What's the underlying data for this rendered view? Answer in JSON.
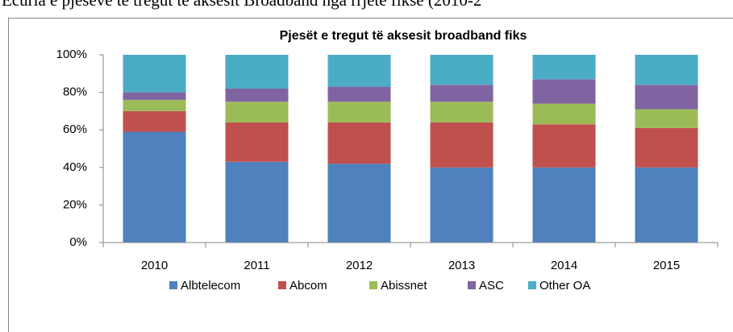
{
  "heading": "Ecuria e pjesëve të tregut të aksesit Broadband nga rrjete fikse (2010-2",
  "chart_data": {
    "type": "stacked_bar",
    "title": "Pjesët e tregut të aksesit broadband fiks",
    "categories": [
      "2010",
      "2011",
      "2012",
      "2013",
      "2014",
      "2015"
    ],
    "series": [
      {
        "name": "Albtelecom",
        "color": "#4f81bd",
        "values": [
          59,
          43,
          42,
          40,
          40,
          40
        ]
      },
      {
        "name": "Abcom",
        "color": "#c0504d",
        "values": [
          11,
          21,
          22,
          24,
          23,
          21
        ]
      },
      {
        "name": "Abissnet",
        "color": "#9bbb59",
        "values": [
          6,
          11,
          11,
          11,
          11,
          10
        ]
      },
      {
        "name": "ASC",
        "color": "#8064a2",
        "values": [
          4,
          7,
          8,
          9,
          13,
          13
        ]
      },
      {
        "name": "Other OA",
        "color": "#4bacc6",
        "values": [
          20,
          18,
          17,
          16,
          13,
          16
        ]
      }
    ],
    "ylim": [
      0,
      100
    ],
    "yticks": [
      {
        "value": 0,
        "label": "0%"
      },
      {
        "value": 20,
        "label": "20%"
      },
      {
        "value": 40,
        "label": "40%"
      },
      {
        "value": 60,
        "label": "60%"
      },
      {
        "value": 80,
        "label": "80%"
      },
      {
        "value": 100,
        "label": "100%"
      }
    ],
    "legend": "bottom"
  }
}
